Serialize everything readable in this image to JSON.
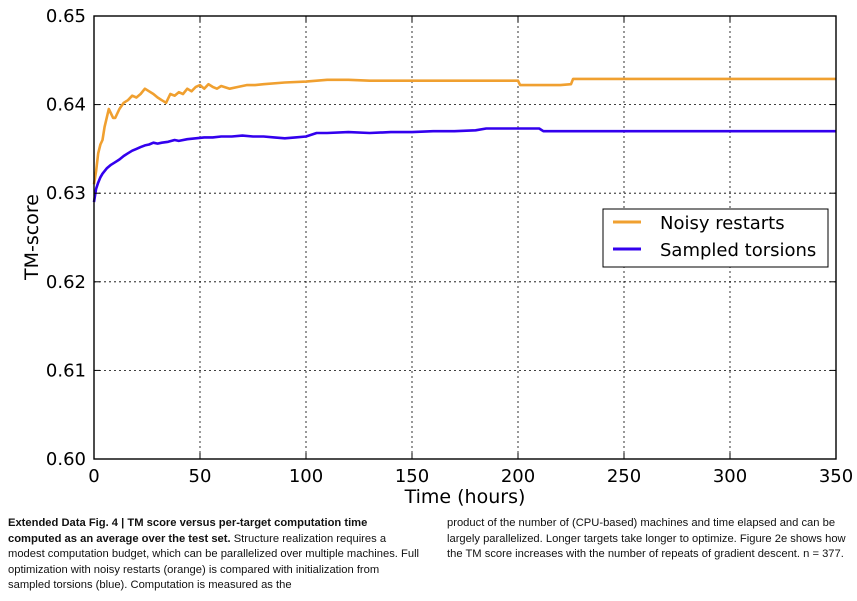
{
  "chart_data": {
    "type": "line",
    "title": "",
    "xlabel": "Time (hours)",
    "ylabel": "TM-score",
    "xlim": [
      0,
      350
    ],
    "ylim": [
      0.6,
      0.65
    ],
    "xticks": [
      "0",
      "50",
      "100",
      "150",
      "200",
      "250",
      "300",
      "350"
    ],
    "yticks": [
      "0.60",
      "0.61",
      "0.62",
      "0.63",
      "0.64",
      "0.65"
    ],
    "grid": true,
    "legend": "center-right",
    "series": [
      {
        "name": "Noisy restarts",
        "color": "#f0a030",
        "x": [
          0,
          1,
          2,
          3,
          4,
          5,
          6,
          7,
          8,
          9,
          10,
          12,
          14,
          16,
          18,
          20,
          22,
          24,
          26,
          28,
          30,
          32,
          34,
          36,
          38,
          40,
          42,
          44,
          46,
          48,
          50,
          52,
          54,
          56,
          58,
          60,
          64,
          68,
          72,
          76,
          80,
          90,
          100,
          110,
          120,
          130,
          140,
          150,
          160,
          170,
          180,
          190,
          200,
          201,
          210,
          220,
          225,
          226,
          240,
          260,
          280,
          300,
          320,
          340,
          350
        ],
        "y": [
          0.631,
          0.6325,
          0.6345,
          0.6355,
          0.636,
          0.6375,
          0.6385,
          0.6395,
          0.639,
          0.6385,
          0.6385,
          0.6395,
          0.6402,
          0.6405,
          0.641,
          0.6408,
          0.6412,
          0.6418,
          0.6415,
          0.6412,
          0.6408,
          0.6405,
          0.6402,
          0.6412,
          0.641,
          0.6414,
          0.6412,
          0.6418,
          0.6415,
          0.642,
          0.6422,
          0.6418,
          0.6423,
          0.642,
          0.6418,
          0.6421,
          0.6418,
          0.642,
          0.6422,
          0.6422,
          0.6423,
          0.6425,
          0.6426,
          0.6428,
          0.6428,
          0.6427,
          0.6427,
          0.6427,
          0.6427,
          0.6427,
          0.6427,
          0.6427,
          0.6427,
          0.6422,
          0.6422,
          0.6422,
          0.6423,
          0.6429,
          0.6429,
          0.6429,
          0.6429,
          0.6429,
          0.6429,
          0.6429,
          0.6429
        ]
      },
      {
        "name": "Sampled torsions",
        "color": "#3300ee",
        "x": [
          0,
          1,
          2,
          3,
          4,
          5,
          6,
          8,
          10,
          12,
          14,
          16,
          18,
          20,
          22,
          24,
          26,
          28,
          30,
          32,
          35,
          38,
          40,
          44,
          48,
          52,
          56,
          60,
          65,
          70,
          75,
          80,
          85,
          90,
          95,
          100,
          105,
          110,
          120,
          130,
          140,
          150,
          160,
          170,
          180,
          185,
          190,
          200,
          210,
          212,
          220,
          240,
          260,
          280,
          300,
          320,
          340,
          350
        ],
        "y": [
          0.629,
          0.6305,
          0.6312,
          0.6318,
          0.6322,
          0.6325,
          0.6328,
          0.6332,
          0.6335,
          0.6338,
          0.6342,
          0.6345,
          0.6348,
          0.635,
          0.6352,
          0.6354,
          0.6355,
          0.6357,
          0.6356,
          0.6357,
          0.6358,
          0.636,
          0.6359,
          0.6361,
          0.6362,
          0.6363,
          0.6363,
          0.6364,
          0.6364,
          0.6365,
          0.6364,
          0.6364,
          0.6363,
          0.6362,
          0.6363,
          0.6364,
          0.6368,
          0.6368,
          0.6369,
          0.6368,
          0.6369,
          0.6369,
          0.637,
          0.637,
          0.6371,
          0.6373,
          0.6373,
          0.6373,
          0.6373,
          0.637,
          0.637,
          0.637,
          0.637,
          0.637,
          0.637,
          0.637,
          0.637,
          0.637
        ]
      }
    ]
  },
  "caption": {
    "fig_label": "Extended Data Fig. 4 | TM score versus per-target computation time computed as an average over the test set.",
    "left_text": " Structure realization requires a modest computation budget, which can be parallelized over multiple machines. Full optimization with noisy restarts (orange) is compared with initialization from sampled torsions (blue). Computation is measured as the",
    "right_text": "product of the number of (CPU-based) machines and time elapsed and can be largely parallelized. Longer targets take longer to optimize. Figure 2e shows how the TM score increases with the number of repeats of gradient descent. n = 377."
  }
}
